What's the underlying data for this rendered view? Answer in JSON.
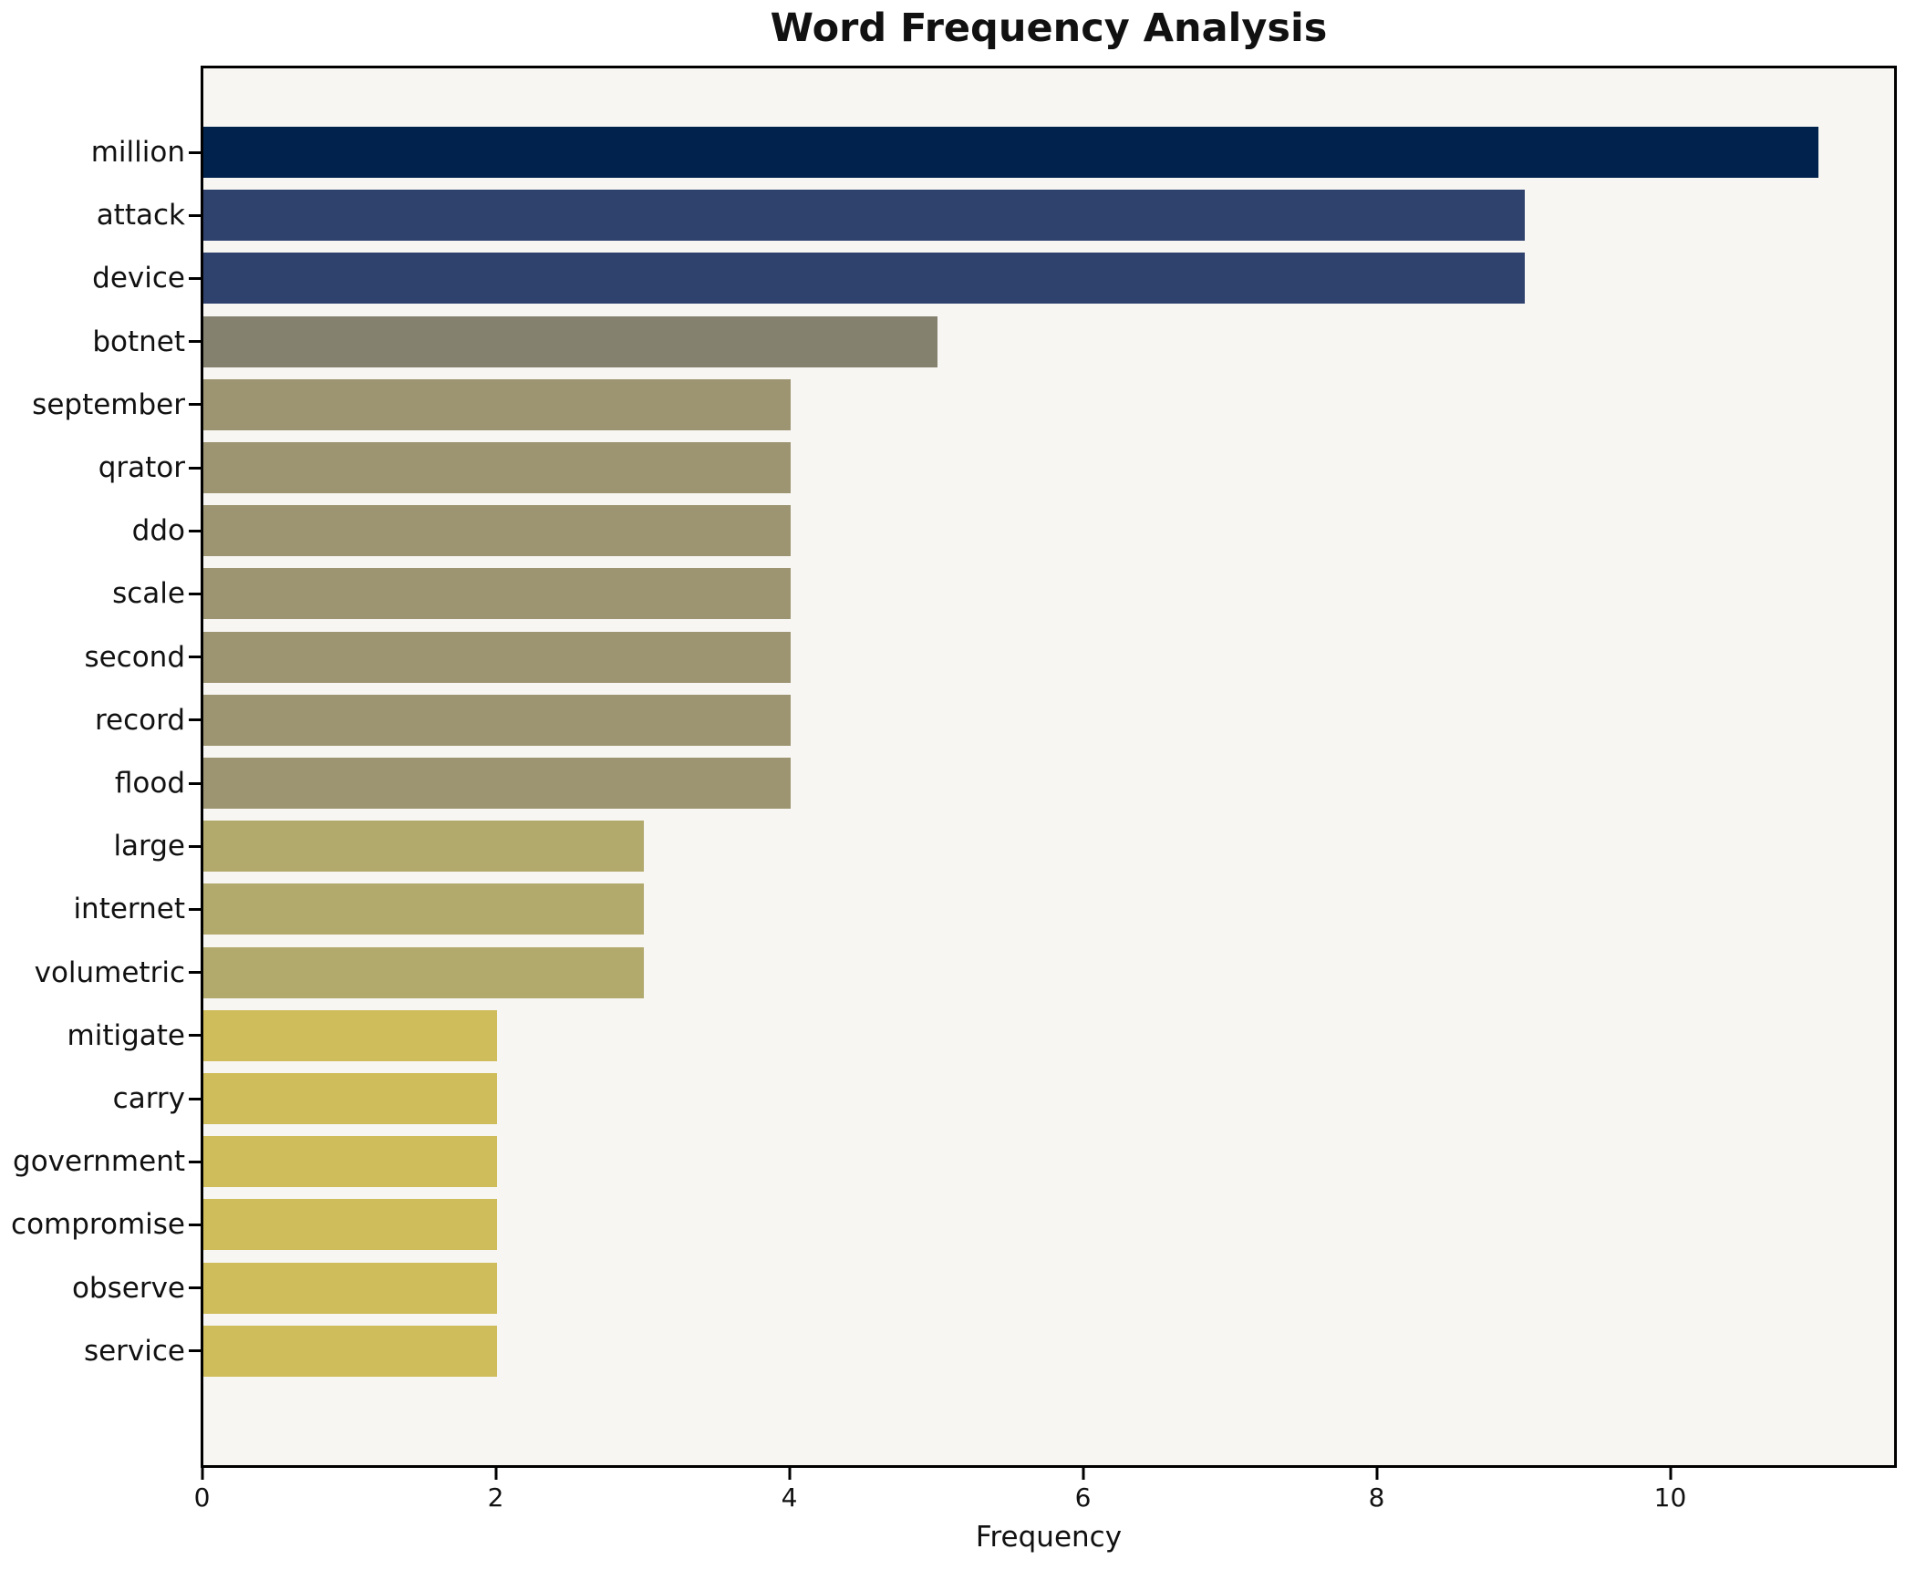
{
  "chart_data": {
    "type": "bar",
    "orientation": "horizontal",
    "title": "Word Frequency Analysis",
    "xlabel": "Frequency",
    "ylabel": "",
    "categories": [
      "million",
      "attack",
      "device",
      "botnet",
      "september",
      "qrator",
      "ddo",
      "scale",
      "second",
      "record",
      "flood",
      "large",
      "internet",
      "volumetric",
      "mitigate",
      "carry",
      "government",
      "compromise",
      "observe",
      "service"
    ],
    "values": [
      11,
      9,
      9,
      5,
      4,
      4,
      4,
      4,
      4,
      4,
      4,
      3,
      3,
      3,
      2,
      2,
      2,
      2,
      2,
      2
    ],
    "bar_colors": [
      "#00224d",
      "#2f426e",
      "#2f426e",
      "#84826f",
      "#9d9572",
      "#9d9572",
      "#9d9572",
      "#9d9572",
      "#9d9572",
      "#9d9572",
      "#9d9572",
      "#b2a96d",
      "#b2a96d",
      "#b2a96d",
      "#cfbc5b",
      "#cfbc5b",
      "#cfbc5b",
      "#cfbc5b",
      "#cfbc5b",
      "#cfbc5b"
    ],
    "xticks": [
      0,
      2,
      4,
      6,
      8,
      10
    ],
    "xlim": [
      0,
      11.55
    ],
    "grid": false,
    "legend": "none",
    "colors": {
      "figure_background": "#ffffff",
      "plot_background": "#f7f6f3",
      "spine": "#000000",
      "text": "#111111"
    }
  }
}
